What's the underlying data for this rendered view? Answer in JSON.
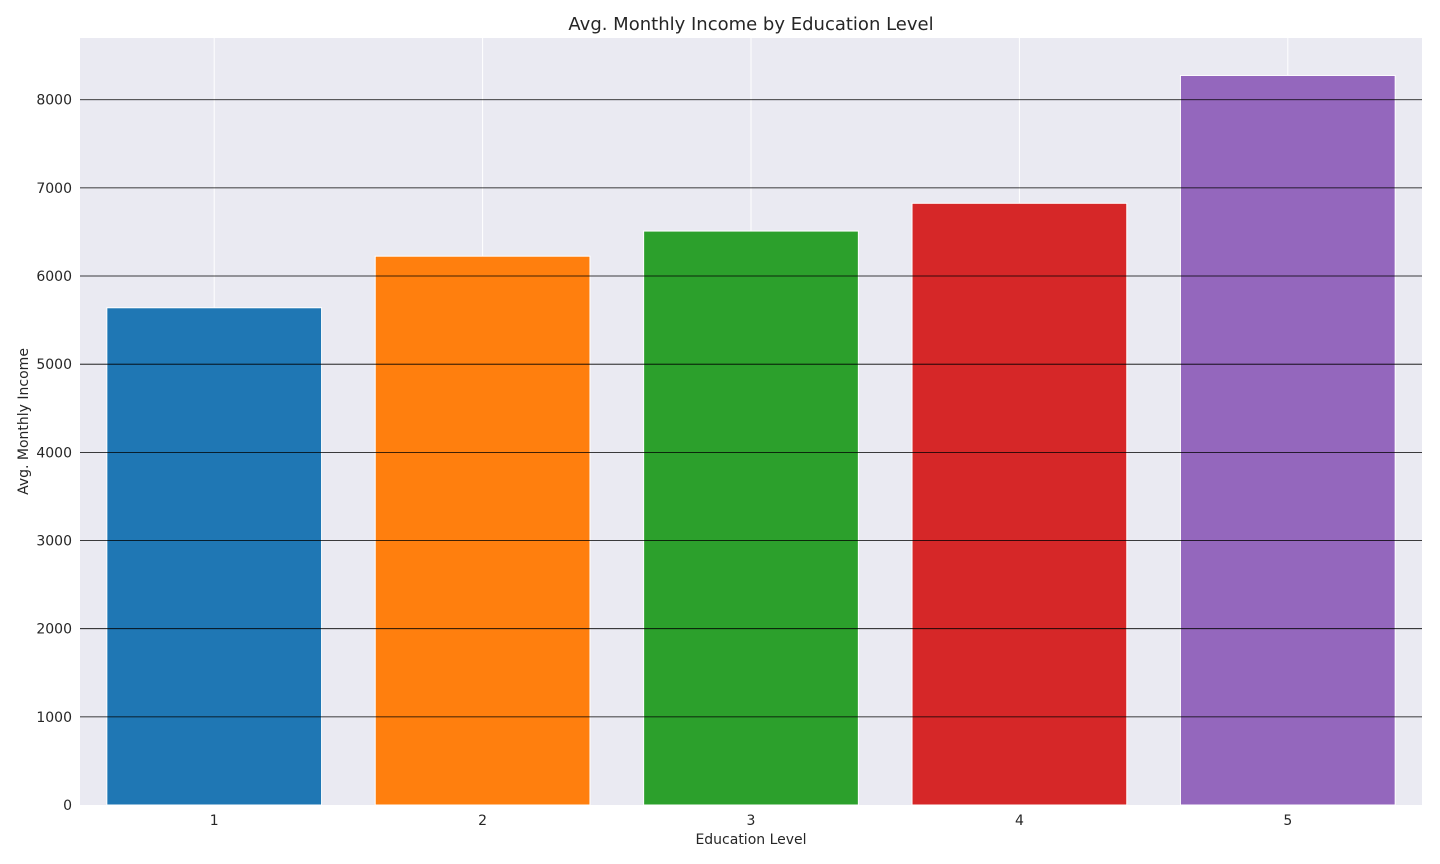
{
  "chart_data": {
    "type": "bar",
    "title": "Avg. Monthly Income by Education Level",
    "xlabel": "Education Level",
    "ylabel": "Avg. Monthly Income",
    "categories": [
      "1",
      "2",
      "3",
      "4",
      "5"
    ],
    "values": [
      5640,
      6225,
      6510,
      6825,
      8275
    ],
    "colors": [
      "#1f77b4",
      "#ff7f0e",
      "#2ca02c",
      "#d62728",
      "#9467bd"
    ],
    "ylim": [
      0,
      8700
    ],
    "yticks": [
      0,
      1000,
      2000,
      3000,
      4000,
      5000,
      6000,
      7000,
      8000
    ],
    "grid": true,
    "legend": "none",
    "background_color": "#eaeaf2"
  }
}
